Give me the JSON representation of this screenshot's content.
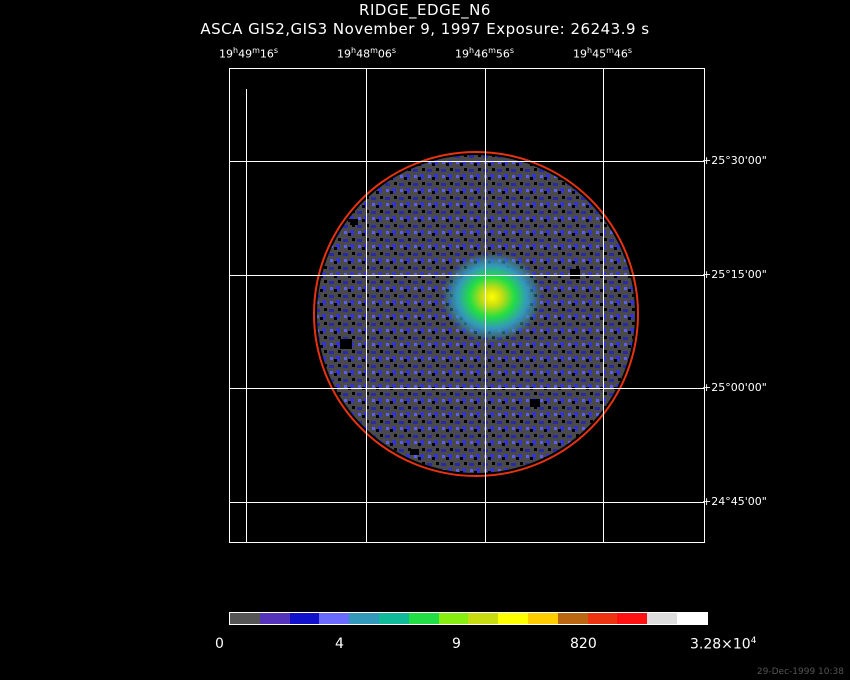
{
  "header": {
    "title": "RIDGE_EDGE_N6",
    "subtitle": "ASCA GIS2,GIS3 November 9, 1997 Exposure: 26243.9 s"
  },
  "ra_labels": [
    {
      "h": "19",
      "m": "49",
      "s": "16"
    },
    {
      "h": "19",
      "m": "48",
      "s": "06"
    },
    {
      "h": "19",
      "m": "46",
      "s": "56"
    },
    {
      "h": "19",
      "m": "45",
      "s": "46"
    }
  ],
  "dec_labels": [
    "+25°30'00\"",
    "+25°15'00\"",
    "+25°00'00\"",
    "+24°45'00\""
  ],
  "colorbar": {
    "labels": [
      "0",
      "4",
      "9",
      "820"
    ],
    "max_label": {
      "mantissa": "3.28×10",
      "exponent": "4"
    },
    "colors": [
      "#555555",
      "#5533bb",
      "#1111cc",
      "#6a6aff",
      "#3399bb",
      "#11bb99",
      "#22dd44",
      "#88ee11",
      "#c8dd11",
      "#ffff00",
      "#ffcc00",
      "#bb6611",
      "#ee3311",
      "#ff1111",
      "#dddddd",
      "#ffffff"
    ]
  },
  "timestamp": "29-Dec-1999 10:38"
}
